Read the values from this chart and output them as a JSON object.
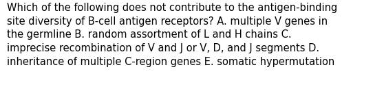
{
  "lines": [
    "Which of the following does not contribute to the antigen-binding",
    "site diversity of B-cell antigen receptors? A. multiple V genes in",
    "the germline B. random assortment of L and H chains C.",
    "imprecise recombination of V and J or V, D, and J segments D.",
    "inheritance of multiple C-region genes E. somatic hypermutation"
  ],
  "background_color": "#ffffff",
  "text_color": "#000000",
  "font_size": 10.5,
  "fig_width": 5.58,
  "fig_height": 1.46,
  "dpi": 100
}
